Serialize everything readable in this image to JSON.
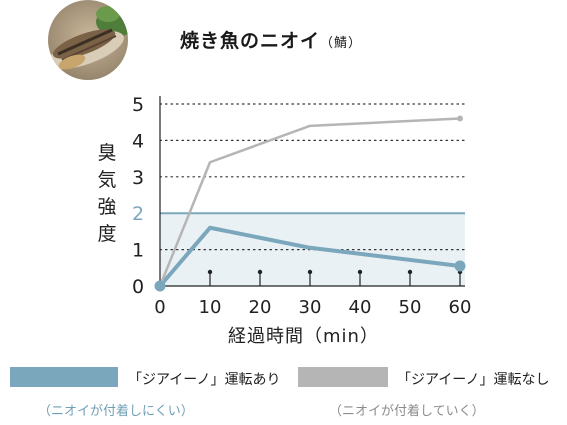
{
  "title": "焼き魚のニオイ",
  "title_sub": "（鯖）",
  "chart_data": {
    "type": "line",
    "title": "焼き魚のニオイ（鯖）",
    "xlabel": "経過時間（min）",
    "ylabel": "臭気強度",
    "x_ticks": [
      "0",
      "10",
      "20",
      "30",
      "40",
      "50",
      "60"
    ],
    "y_ticks": [
      "0",
      "1",
      "2",
      "3",
      "4",
      "5"
    ],
    "xlim": [
      0,
      60
    ],
    "ylim": [
      0,
      5
    ],
    "threshold": {
      "value": 2,
      "band": [
        0,
        2
      ],
      "color": "#7aa7bc",
      "band_color": "#eaf1f5"
    },
    "grid": "dotted horizontal",
    "series": [
      {
        "name": "「ジアイーノ」運転あり",
        "color": "#7aa7bc",
        "x": [
          0,
          10,
          30,
          60
        ],
        "y": [
          0,
          1.6,
          1.05,
          0.55
        ]
      },
      {
        "name": "「ジアイーノ」運転なし",
        "color": "#b5b5b5",
        "x": [
          0,
          10,
          30,
          60
        ],
        "y": [
          0,
          3.4,
          4.4,
          4.6
        ]
      }
    ],
    "legend_position": "bottom"
  },
  "legend": [
    {
      "label": "「ジアイーノ」運転あり",
      "note": "（ニオイが付着しにくい）",
      "color": "#7aa7bc",
      "note_color": "#6f9fb5"
    },
    {
      "label": "「ジアイーノ」運転なし",
      "note": "（ニオイが付着していく）",
      "color": "#b5b5b5",
      "note_color": "#8c8c8c"
    }
  ]
}
